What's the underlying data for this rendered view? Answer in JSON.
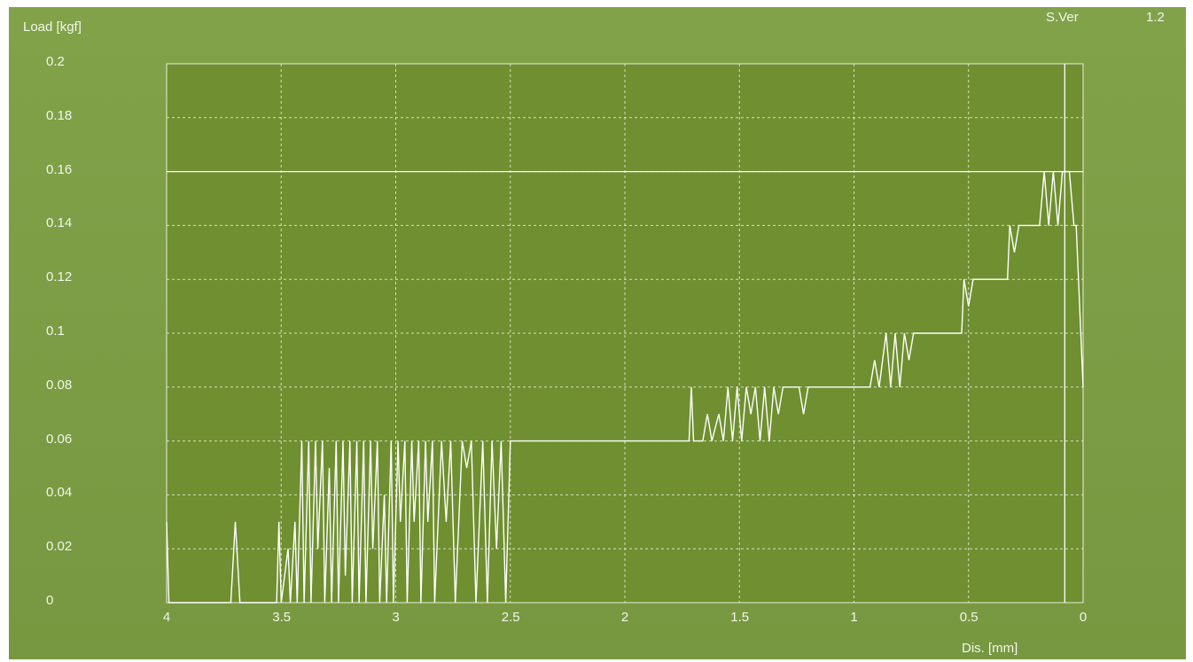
{
  "header": {
    "version_label": "S.Ver",
    "version_value": "1.2"
  },
  "chart_data": {
    "type": "line",
    "title": "",
    "ylabel": "Load [kgf]",
    "xlabel": "Dis. [mm]",
    "xlim": [
      4,
      0
    ],
    "ylim": [
      0,
      0.2
    ],
    "x_reversed": true,
    "x_ticks": [
      "4",
      "3.5",
      "3",
      "2.5",
      "2",
      "1.5",
      "1",
      "0.5",
      "0"
    ],
    "y_ticks": [
      "0.2",
      "0.18",
      "0.16",
      "0.14",
      "0.12",
      "0.1",
      "0.08",
      "0.06",
      "0.04",
      "0.02",
      "0"
    ],
    "grid": true,
    "reference_lines": {
      "horizontal_load": 0.16,
      "vertical_dis": 0.08
    },
    "colors": {
      "background": "#7a9b43",
      "plot_area": "#6f8f30",
      "line": "#ffffff",
      "grid": "#e9eede",
      "text": "#f2f5ea"
    },
    "series": [
      {
        "values": [
          [
            4.0,
            0.03
          ],
          [
            3.99,
            0.0
          ],
          [
            3.72,
            0.0
          ],
          [
            3.7,
            0.03
          ],
          [
            3.68,
            0.0
          ],
          [
            3.52,
            0.0
          ],
          [
            3.51,
            0.03
          ],
          [
            3.5,
            0.0
          ],
          [
            3.47,
            0.02
          ],
          [
            3.46,
            0.0
          ],
          [
            3.44,
            0.03
          ],
          [
            3.43,
            0.0
          ],
          [
            3.41,
            0.06
          ],
          [
            3.4,
            0.0
          ],
          [
            3.38,
            0.06
          ],
          [
            3.37,
            0.0
          ],
          [
            3.35,
            0.06
          ],
          [
            3.34,
            0.02
          ],
          [
            3.32,
            0.06
          ],
          [
            3.31,
            0.0
          ],
          [
            3.29,
            0.05
          ],
          [
            3.28,
            0.0
          ],
          [
            3.26,
            0.06
          ],
          [
            3.25,
            0.0
          ],
          [
            3.23,
            0.06
          ],
          [
            3.22,
            0.01
          ],
          [
            3.2,
            0.06
          ],
          [
            3.19,
            0.0
          ],
          [
            3.17,
            0.06
          ],
          [
            3.16,
            0.0
          ],
          [
            3.14,
            0.06
          ],
          [
            3.13,
            0.0
          ],
          [
            3.11,
            0.06
          ],
          [
            3.1,
            0.02
          ],
          [
            3.08,
            0.06
          ],
          [
            3.07,
            0.0
          ],
          [
            3.05,
            0.04
          ],
          [
            3.04,
            0.0
          ],
          [
            3.02,
            0.06
          ],
          [
            3.01,
            0.0
          ],
          [
            2.99,
            0.06
          ],
          [
            2.98,
            0.03
          ],
          [
            2.96,
            0.06
          ],
          [
            2.95,
            0.0
          ],
          [
            2.93,
            0.06
          ],
          [
            2.92,
            0.03
          ],
          [
            2.9,
            0.06
          ],
          [
            2.89,
            0.0
          ],
          [
            2.87,
            0.06
          ],
          [
            2.86,
            0.03
          ],
          [
            2.84,
            0.06
          ],
          [
            2.83,
            0.0
          ],
          [
            2.8,
            0.06
          ],
          [
            2.78,
            0.03
          ],
          [
            2.76,
            0.06
          ],
          [
            2.74,
            0.0
          ],
          [
            2.71,
            0.06
          ],
          [
            2.69,
            0.05
          ],
          [
            2.67,
            0.06
          ],
          [
            2.65,
            0.0
          ],
          [
            2.62,
            0.06
          ],
          [
            2.6,
            0.0
          ],
          [
            2.58,
            0.06
          ],
          [
            2.56,
            0.02
          ],
          [
            2.54,
            0.06
          ],
          [
            2.52,
            0.0
          ],
          [
            2.5,
            0.06
          ],
          [
            1.72,
            0.06
          ],
          [
            1.71,
            0.08
          ],
          [
            1.7,
            0.06
          ],
          [
            1.66,
            0.06
          ],
          [
            1.64,
            0.07
          ],
          [
            1.62,
            0.06
          ],
          [
            1.59,
            0.07
          ],
          [
            1.57,
            0.06
          ],
          [
            1.55,
            0.08
          ],
          [
            1.53,
            0.06
          ],
          [
            1.51,
            0.08
          ],
          [
            1.49,
            0.06
          ],
          [
            1.47,
            0.08
          ],
          [
            1.45,
            0.07
          ],
          [
            1.43,
            0.08
          ],
          [
            1.41,
            0.06
          ],
          [
            1.39,
            0.08
          ],
          [
            1.37,
            0.06
          ],
          [
            1.35,
            0.08
          ],
          [
            1.33,
            0.07
          ],
          [
            1.31,
            0.08
          ],
          [
            1.24,
            0.08
          ],
          [
            1.22,
            0.07
          ],
          [
            1.2,
            0.08
          ],
          [
            0.93,
            0.08
          ],
          [
            0.91,
            0.09
          ],
          [
            0.89,
            0.08
          ],
          [
            0.86,
            0.1
          ],
          [
            0.84,
            0.08
          ],
          [
            0.82,
            0.1
          ],
          [
            0.8,
            0.08
          ],
          [
            0.78,
            0.1
          ],
          [
            0.76,
            0.09
          ],
          [
            0.74,
            0.1
          ],
          [
            0.53,
            0.1
          ],
          [
            0.52,
            0.12
          ],
          [
            0.5,
            0.11
          ],
          [
            0.48,
            0.12
          ],
          [
            0.47,
            0.12
          ],
          [
            0.33,
            0.12
          ],
          [
            0.32,
            0.14
          ],
          [
            0.3,
            0.13
          ],
          [
            0.28,
            0.14
          ],
          [
            0.19,
            0.14
          ],
          [
            0.17,
            0.16
          ],
          [
            0.15,
            0.14
          ],
          [
            0.13,
            0.16
          ],
          [
            0.11,
            0.14
          ],
          [
            0.09,
            0.16
          ],
          [
            0.06,
            0.16
          ],
          [
            0.04,
            0.14
          ],
          [
            0.03,
            0.14
          ],
          [
            0.02,
            0.12
          ],
          [
            0.01,
            0.1
          ],
          [
            0.0,
            0.08
          ]
        ]
      }
    ]
  }
}
